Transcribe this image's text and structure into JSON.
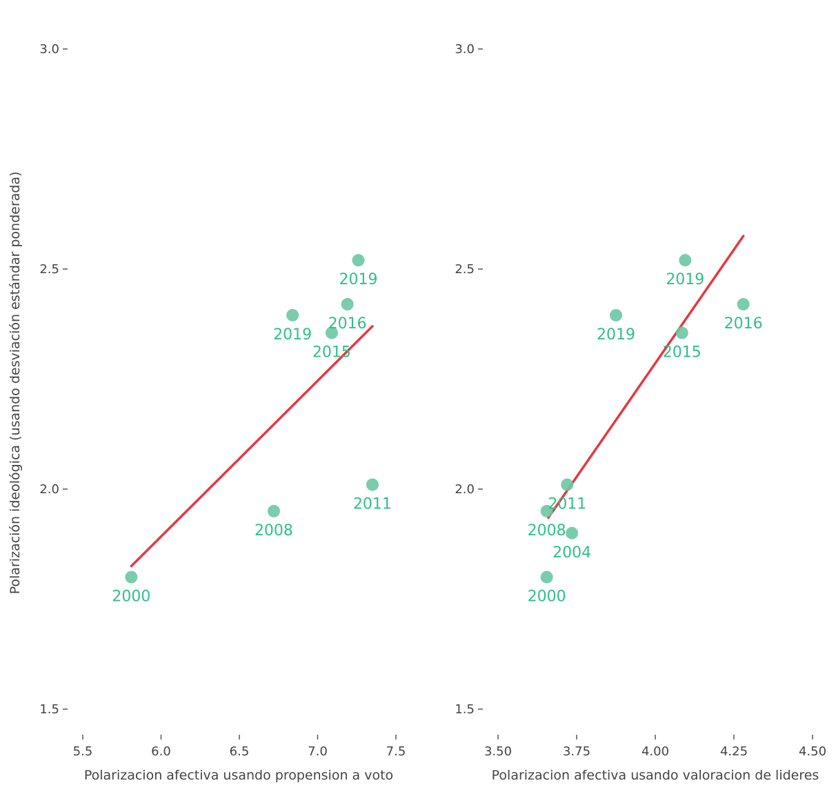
{
  "colors": {
    "point": "#6cc7a4",
    "label": "#2fbf8a",
    "fit_line": "#e8363f",
    "tick_text": "#444444",
    "tick_mark": "#555555"
  },
  "chart_data": [
    {
      "type": "scatter",
      "xlabel": "Polarizacion afectiva usando propension a voto",
      "ylabel": "Polarización ideológica (usando desviación estándar ponderada)",
      "xlim": [
        5.5,
        7.5
      ],
      "ylim": [
        1.5,
        3.0
      ],
      "x_ticks": [
        "5.5",
        "6.0",
        "6.5",
        "7.0",
        "7.5"
      ],
      "y_ticks": [
        "1.5",
        "2.0",
        "2.5",
        "3.0"
      ],
      "grid": false,
      "points": [
        {
          "label": "2000",
          "x": 5.81,
          "y": 1.8
        },
        {
          "label": "2008",
          "x": 6.72,
          "y": 1.95
        },
        {
          "label": "2011",
          "x": 7.35,
          "y": 2.01
        },
        {
          "label": "2015",
          "x": 7.09,
          "y": 2.355
        },
        {
          "label": "2016",
          "x": 7.19,
          "y": 2.42
        },
        {
          "label": "2019",
          "x": 6.84,
          "y": 2.395
        },
        {
          "label": "2019",
          "x": 7.26,
          "y": 2.52
        }
      ],
      "fit_line": {
        "x": [
          5.81,
          7.35
        ],
        "y": [
          1.825,
          2.37
        ]
      }
    },
    {
      "type": "scatter",
      "xlabel": "Polarizacion afectiva usando valoracion de lideres",
      "ylabel": "",
      "xlim": [
        3.5,
        4.5
      ],
      "ylim": [
        1.5,
        3.0
      ],
      "x_ticks": [
        "3.50",
        "3.75",
        "4.00",
        "4.25",
        "4.50"
      ],
      "y_ticks": [
        "1.5",
        "2.0",
        "2.5",
        "3.0"
      ],
      "grid": false,
      "points": [
        {
          "label": "2000",
          "x": 3.655,
          "y": 1.8
        },
        {
          "label": "2004",
          "x": 3.735,
          "y": 1.9
        },
        {
          "label": "2008",
          "x": 3.655,
          "y": 1.95
        },
        {
          "label": "2011",
          "x": 3.72,
          "y": 2.01
        },
        {
          "label": "2015",
          "x": 4.085,
          "y": 2.355
        },
        {
          "label": "2016",
          "x": 4.28,
          "y": 2.42
        },
        {
          "label": "2019",
          "x": 3.875,
          "y": 2.395
        },
        {
          "label": "2019",
          "x": 4.095,
          "y": 2.52
        }
      ],
      "fit_line": {
        "x": [
          3.66,
          4.28
        ],
        "y": [
          1.935,
          2.575
        ]
      }
    }
  ]
}
